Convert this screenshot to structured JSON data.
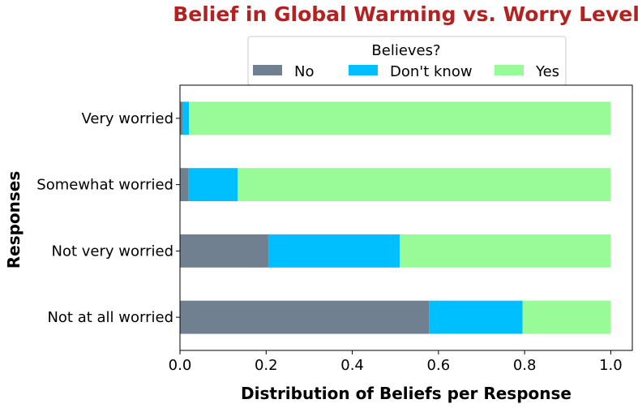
{
  "chart_data": {
    "type": "bar",
    "orientation": "horizontal",
    "stacked": true,
    "title": "Belief in Global Warming vs. Worry Level",
    "title_color": "#B22222",
    "xlabel": "Distribution of Beliefs per Response",
    "ylabel": "Responses",
    "xlim": [
      0,
      1.05
    ],
    "x_ticks": [
      "0.0",
      "0.2",
      "0.4",
      "0.6",
      "0.8",
      "1.0"
    ],
    "x_tick_values": [
      0,
      0.2,
      0.4,
      0.6,
      0.8,
      1.0
    ],
    "categories": [
      "Very worried",
      "Somewhat worried",
      "Not very worried",
      "Not at all worried"
    ],
    "legend": {
      "title": "Believes?",
      "placement": "top-center"
    },
    "grid": false,
    "series": [
      {
        "name": "No",
        "color": "#708090",
        "values": [
          0.007,
          0.02,
          0.205,
          0.578
        ]
      },
      {
        "name": "Don't know",
        "color": "#00BFFF",
        "values": [
          0.014,
          0.114,
          0.305,
          0.217
        ]
      },
      {
        "name": "Yes",
        "color": "#98FB98",
        "values": [
          0.979,
          0.866,
          0.49,
          0.205
        ]
      }
    ]
  }
}
